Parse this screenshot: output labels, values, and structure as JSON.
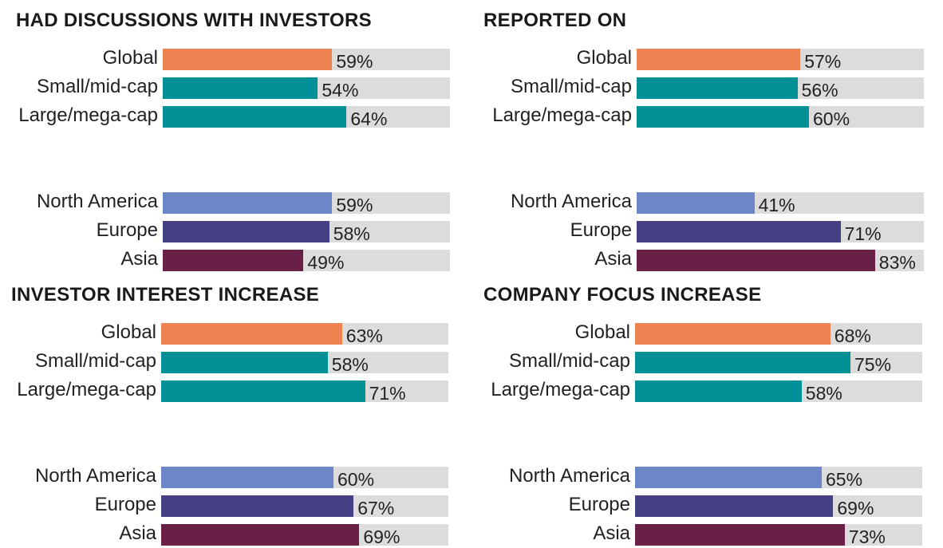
{
  "colors": {
    "global": "#ec8350",
    "small_mid_cap": "#009096",
    "large_mega_cap": "#009096",
    "north_america": "#6b87c7",
    "europe": "#453f84",
    "asia": "#6a1f47",
    "track": "#dcdcdc"
  },
  "chart_data": [
    {
      "type": "bar",
      "title": "HAD DISCUSSIONS WITH INVESTORS",
      "categories": [
        "Global",
        "Small/mid-cap",
        "Large/mega-cap",
        "North America",
        "Europe",
        "Asia"
      ],
      "values": [
        59,
        54,
        64,
        59,
        58,
        49
      ],
      "value_labels": [
        "59%",
        "54%",
        "64%",
        "59%",
        "58%",
        "49%"
      ],
      "xlim": [
        0,
        100
      ]
    },
    {
      "type": "bar",
      "title": "REPORTED ON",
      "categories": [
        "Global",
        "Small/mid-cap",
        "Large/mega-cap",
        "North America",
        "Europe",
        "Asia"
      ],
      "values": [
        57,
        56,
        60,
        41,
        71,
        83
      ],
      "value_labels": [
        "57%",
        "56%",
        "60%",
        "41%",
        "71%",
        "83%"
      ],
      "xlim": [
        0,
        100
      ]
    },
    {
      "type": "bar",
      "title": "INVESTOR INTEREST INCREASE",
      "categories": [
        "Global",
        "Small/mid-cap",
        "Large/mega-cap",
        "North America",
        "Europe",
        "Asia"
      ],
      "values": [
        63,
        58,
        71,
        60,
        67,
        69
      ],
      "value_labels": [
        "63%",
        "58%",
        "71%",
        "60%",
        "67%",
        "69%"
      ],
      "xlim": [
        0,
        100
      ]
    },
    {
      "type": "bar",
      "title": "COMPANY FOCUS INCREASE",
      "categories": [
        "Global",
        "Small/mid-cap",
        "Large/mega-cap",
        "North America",
        "Europe",
        "Asia"
      ],
      "values": [
        68,
        75,
        58,
        65,
        69,
        73
      ],
      "value_labels": [
        "68%",
        "75%",
        "58%",
        "65%",
        "69%",
        "73%"
      ],
      "xlim": [
        0,
        100
      ]
    }
  ]
}
